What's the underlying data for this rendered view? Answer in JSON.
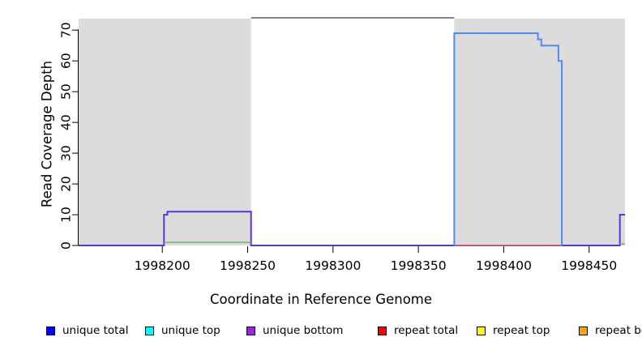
{
  "figure": {
    "xlabel": "Coordinate in Reference Genome",
    "ylabel": "Read Coverage Depth",
    "background": "#ffffff"
  },
  "chart_data": {
    "type": "line",
    "title": "",
    "xlabel": "Coordinate in Reference Genome",
    "ylabel": "Read Coverage Depth",
    "xlim": [
      1998151,
      1998471
    ],
    "ylim": [
      0,
      74
    ],
    "xticks": [
      1998200,
      1998250,
      1998300,
      1998350,
      1998400,
      1998450
    ],
    "yticks": [
      0,
      10,
      20,
      30,
      40,
      50,
      60,
      70
    ],
    "grid": false,
    "legend_position": "bottom",
    "shaded_regions": [
      {
        "x0": 1998151,
        "x1": 1998252,
        "color": "#dcdcdc"
      },
      {
        "x0": 1998371,
        "x1": 1998471,
        "color": "#dcdcdc"
      }
    ],
    "top_border": {
      "x0": 1998252,
      "x1": 1998371,
      "y": 74,
      "color": "#848484",
      "width": 2
    },
    "series": [
      {
        "name": "unique-coverage-outline",
        "color": "#5b35d8",
        "width": 2,
        "points": [
          [
            1998151,
            0
          ],
          [
            1998201,
            0
          ],
          [
            1998201,
            10
          ],
          [
            1998203,
            10
          ],
          [
            1998203,
            11
          ],
          [
            1998252,
            11
          ],
          [
            1998252,
            0
          ],
          [
            1998371,
            0
          ],
          [
            1998434,
            0
          ],
          [
            1998468,
            0
          ],
          [
            1998468,
            10
          ],
          [
            1998471,
            10
          ]
        ]
      },
      {
        "name": "green-baseline-left",
        "color": "#6abf69",
        "width": 1.6,
        "points": [
          [
            1998201,
            1
          ],
          [
            1998252,
            1
          ]
        ]
      },
      {
        "name": "green-baseline-right",
        "color": "#6abf69",
        "width": 1.6,
        "points": [
          [
            1998468,
            0.5
          ],
          [
            1998471,
            0.5
          ]
        ]
      },
      {
        "name": "repeat-total-baseline",
        "color": "#e86060",
        "width": 1.6,
        "points": [
          [
            1998371,
            0
          ],
          [
            1998434,
            0
          ]
        ]
      },
      {
        "name": "unique-total-plateau",
        "color": "#4d8bf5",
        "width": 2,
        "points": [
          [
            1998371,
            0
          ],
          [
            1998371,
            69
          ],
          [
            1998420,
            69
          ],
          [
            1998420,
            67
          ],
          [
            1998422,
            67
          ],
          [
            1998422,
            65
          ],
          [
            1998432,
            65
          ],
          [
            1998432,
            60
          ],
          [
            1998434,
            60
          ],
          [
            1998434,
            0
          ]
        ]
      }
    ]
  },
  "legend": {
    "items": [
      {
        "label": "unique total",
        "color": "#0000ff"
      },
      {
        "label": "unique top",
        "color": "#00ffff"
      },
      {
        "label": "unique bottom",
        "color": "#a020f0"
      },
      {
        "label": "repeat total",
        "color": "#ff0000"
      },
      {
        "label": "repeat top",
        "color": "#ffff00"
      },
      {
        "label": "repeat bottom",
        "color": "#ffa500"
      }
    ]
  }
}
